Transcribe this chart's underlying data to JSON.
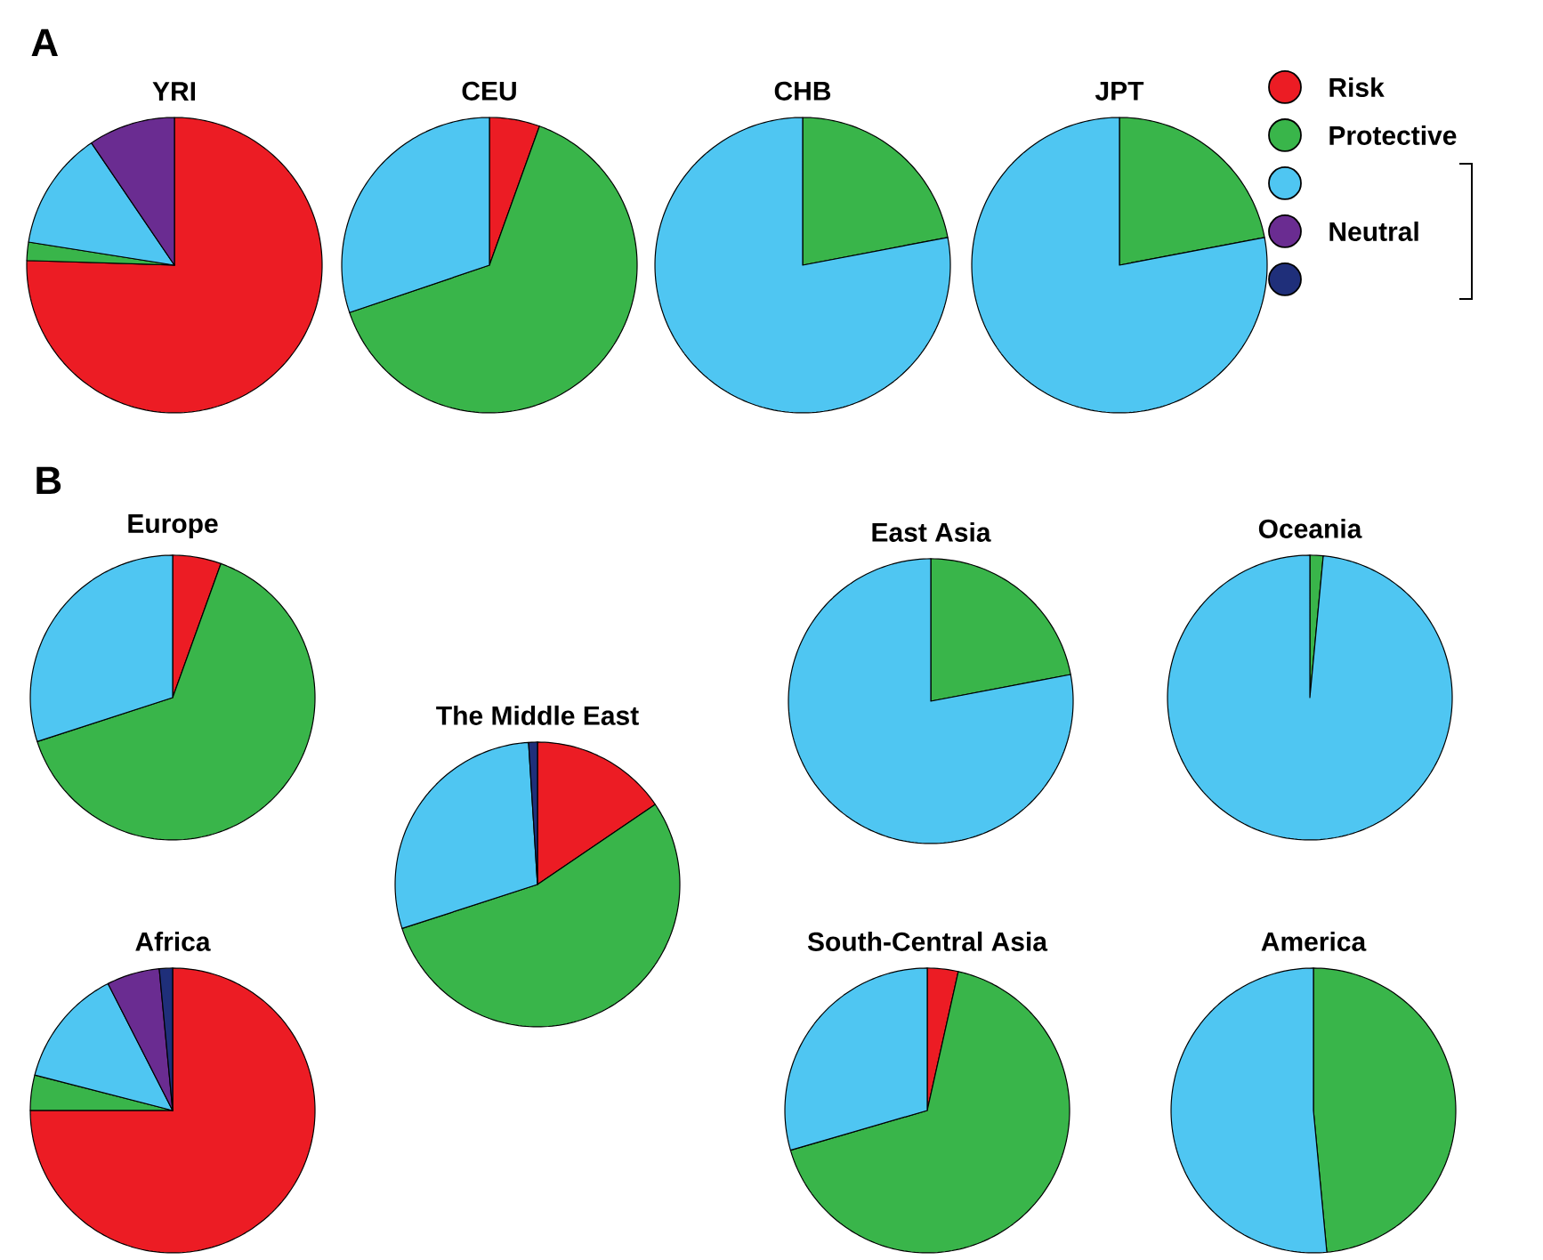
{
  "chart_data": [
    {
      "type": "pie",
      "title": "YRI",
      "annotations": [
        "A"
      ],
      "categories": [
        null,
        null,
        null,
        null,
        null
      ],
      "values": [
        75.5,
        2,
        13,
        9.5,
        0
      ],
      "colors": [
        "#ec1c24",
        "#39b54a",
        "#4fc6f2",
        "#6a2c91",
        "#1f2f7a"
      ]
    },
    {
      "type": "pie",
      "title": "CEU",
      "categories": [
        null,
        null,
        null,
        null,
        null
      ],
      "values": [
        5.5,
        64.3,
        30.2,
        0,
        0
      ],
      "colors": [
        "#ec1c24",
        "#39b54a",
        "#4fc6f2",
        "#6a2c91",
        "#1f2f7a"
      ]
    },
    {
      "type": "pie",
      "title": "CHB",
      "categories": [
        null,
        null,
        null,
        null,
        null
      ],
      "values": [
        0,
        22,
        78,
        0,
        0
      ],
      "colors": [
        "#ec1c24",
        "#39b54a",
        "#4fc6f2",
        "#6a2c91",
        "#1f2f7a"
      ]
    },
    {
      "type": "pie",
      "title": "JPT",
      "legend": "right",
      "annotations": [
        "Neutral"
      ],
      "categories": [
        "Risk",
        "Protective",
        null,
        null,
        null
      ],
      "values": [
        0,
        22,
        78,
        0,
        0
      ],
      "colors": [
        "#ec1c24",
        "#39b54a",
        "#4fc6f2",
        "#6a2c91",
        "#1f2f7a"
      ]
    },
    {
      "type": "pie",
      "title": "Europe",
      "annotations": [
        "B"
      ],
      "categories": [
        null,
        null,
        null,
        null,
        null
      ],
      "values": [
        5.5,
        64.5,
        30,
        0,
        0
      ],
      "colors": [
        "#ec1c24",
        "#39b54a",
        "#4fc6f2",
        "#6a2c91",
        "#1f2f7a"
      ]
    },
    {
      "type": "pie",
      "title": "The Middle East",
      "categories": [
        null,
        null,
        null,
        null,
        null
      ],
      "values": [
        15.5,
        54.5,
        29,
        0,
        1
      ],
      "colors": [
        "#ec1c24",
        "#39b54a",
        "#4fc6f2",
        "#6a2c91",
        "#1f2f7a"
      ]
    },
    {
      "type": "pie",
      "title": "Africa",
      "categories": [
        null,
        null,
        null,
        null,
        null
      ],
      "values": [
        75,
        4,
        13.5,
        6,
        1.5
      ],
      "colors": [
        "#ec1c24",
        "#39b54a",
        "#4fc6f2",
        "#6a2c91",
        "#1f2f7a"
      ]
    },
    {
      "type": "pie",
      "title": "East Asia",
      "categories": [
        null,
        null,
        null,
        null,
        null
      ],
      "values": [
        0,
        22,
        78,
        0,
        0
      ],
      "colors": [
        "#ec1c24",
        "#39b54a",
        "#4fc6f2",
        "#6a2c91",
        "#1f2f7a"
      ]
    },
    {
      "type": "pie",
      "title": "Oceania",
      "categories": [
        null,
        null,
        null,
        null,
        null
      ],
      "values": [
        0,
        1.5,
        98.5,
        0,
        0
      ],
      "colors": [
        "#ec1c24",
        "#39b54a",
        "#4fc6f2",
        "#6a2c91",
        "#1f2f7a"
      ]
    },
    {
      "type": "pie",
      "title": "South-Central Asia",
      "categories": [
        null,
        null,
        null,
        null,
        null
      ],
      "values": [
        3.5,
        67,
        29.5,
        0,
        0
      ],
      "colors": [
        "#ec1c24",
        "#39b54a",
        "#4fc6f2",
        "#6a2c91",
        "#1f2f7a"
      ]
    },
    {
      "type": "pie",
      "title": "America",
      "categories": [
        null,
        null,
        null,
        null,
        null
      ],
      "values": [
        0,
        48.5,
        51.5,
        0,
        0
      ],
      "colors": [
        "#ec1c24",
        "#39b54a",
        "#4fc6f2",
        "#6a2c91",
        "#1f2f7a"
      ]
    }
  ]
}
